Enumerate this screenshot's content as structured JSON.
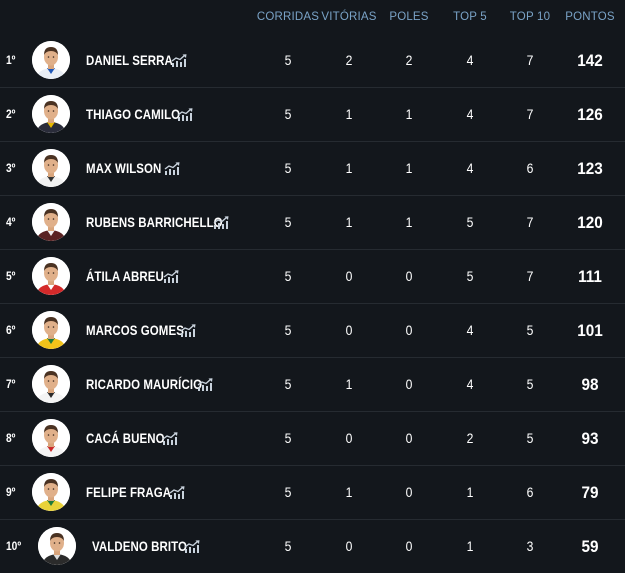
{
  "columns": {
    "corridas": "CORRIDAS",
    "vitorias": "VITÓRIAS",
    "poles": "POLES",
    "top5": "TOP 5",
    "top10": "TOP 10",
    "pontos": "PONTOS"
  },
  "accent_header_color": "#7aa3c7",
  "drivers": [
    {
      "pos": "1º",
      "name": "DANIEL SERRA",
      "corridas": "5",
      "vitorias": "2",
      "poles": "2",
      "top5": "4",
      "top10": "7",
      "pontos": "142",
      "suit": "#e9eef5",
      "accent": "#1f57b8"
    },
    {
      "pos": "2º",
      "name": "THIAGO CAMILO",
      "corridas": "5",
      "vitorias": "1",
      "poles": "1",
      "top5": "4",
      "top10": "7",
      "pontos": "126",
      "suit": "#2a2c3a",
      "accent": "#e6b800"
    },
    {
      "pos": "3º",
      "name": "MAX WILSON",
      "corridas": "5",
      "vitorias": "1",
      "poles": "1",
      "top5": "4",
      "top10": "6",
      "pontos": "123",
      "suit": "#f2f2f2",
      "accent": "#333333"
    },
    {
      "pos": "4º",
      "name": "RUBENS BARRICHELLO",
      "corridas": "5",
      "vitorias": "1",
      "poles": "1",
      "top5": "5",
      "top10": "7",
      "pontos": "120",
      "suit": "#5a2222",
      "accent": "#f0f0f0"
    },
    {
      "pos": "5º",
      "name": "ÁTILA ABREU",
      "corridas": "5",
      "vitorias": "0",
      "poles": "0",
      "top5": "5",
      "top10": "7",
      "pontos": "111",
      "suit": "#d42a2a",
      "accent": "#ffffff"
    },
    {
      "pos": "6º",
      "name": "MARCOS GOMES",
      "corridas": "5",
      "vitorias": "0",
      "poles": "0",
      "top5": "4",
      "top10": "5",
      "pontos": "101",
      "suit": "#f2c31a",
      "accent": "#1f7a3a"
    },
    {
      "pos": "7º",
      "name": "RICARDO MAURÍCIO",
      "corridas": "5",
      "vitorias": "1",
      "poles": "0",
      "top5": "4",
      "top10": "5",
      "pontos": "98",
      "suit": "#f4f4f4",
      "accent": "#2a2a2a"
    },
    {
      "pos": "8º",
      "name": "CACÁ BUENO",
      "corridas": "5",
      "vitorias": "0",
      "poles": "0",
      "top5": "2",
      "top10": "5",
      "pontos": "93",
      "suit": "#f4f4f4",
      "accent": "#cc2a2a"
    },
    {
      "pos": "9º",
      "name": "FELIPE FRAGA",
      "corridas": "5",
      "vitorias": "1",
      "poles": "0",
      "top5": "1",
      "top10": "6",
      "pontos": "79",
      "suit": "#e9d23a",
      "accent": "#1f7a3a"
    },
    {
      "pos": "10º",
      "name": "VALDENO BRITO",
      "corridas": "5",
      "vitorias": "0",
      "poles": "0",
      "top5": "1",
      "top10": "3",
      "pontos": "59",
      "suit": "#2b2b2b",
      "accent": "#dddddd"
    }
  ]
}
